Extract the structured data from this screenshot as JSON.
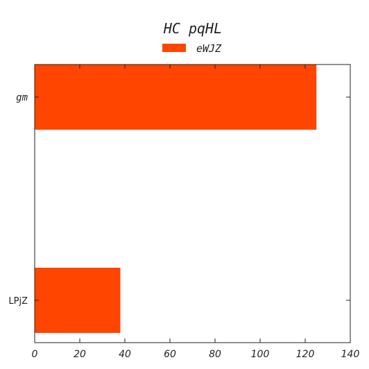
{
  "chart_data": {
    "type": "bar",
    "orientation": "horizontal",
    "title": "HC pqHL",
    "categories": [
      "gm",
      "LPjZ"
    ],
    "series": [
      {
        "name": "eWJZ",
        "values": [
          125,
          38
        ],
        "color": "#ff4500"
      }
    ],
    "xlim": [
      0,
      140
    ],
    "xticks": [
      "0",
      "20",
      "40",
      "60",
      "80",
      "100",
      "120",
      "140"
    ],
    "xlabel": "",
    "ylabel": "",
    "grid": false,
    "legend": "top-center"
  }
}
